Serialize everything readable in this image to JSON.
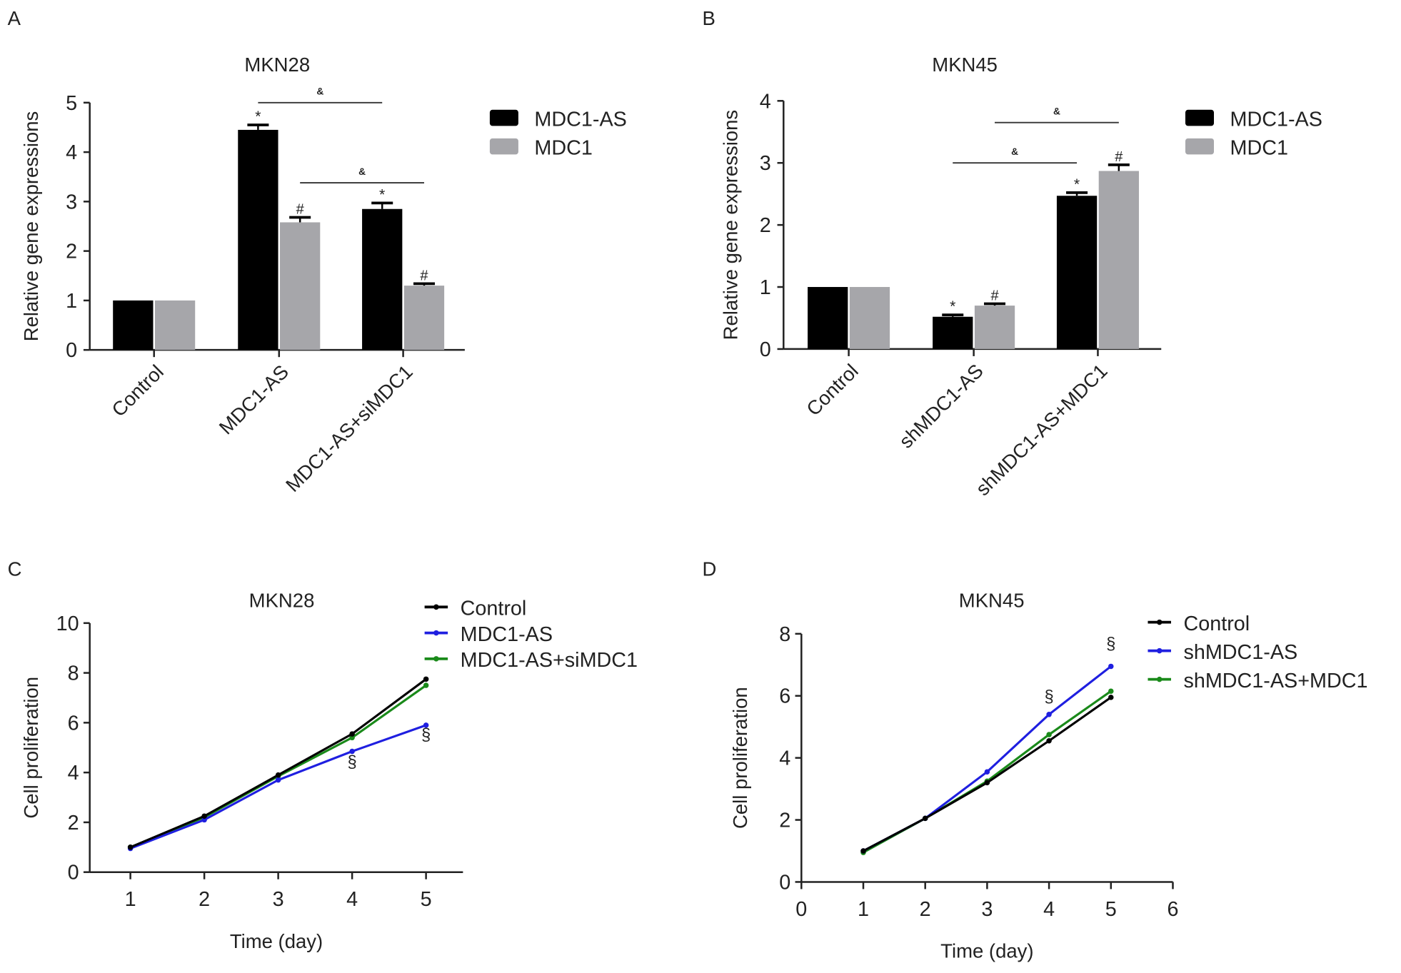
{
  "colors": {
    "black_series": "#000000",
    "gray_series": "#a6a6aa",
    "blue_series": "#1f1fe0",
    "green_series": "#1a8a1a",
    "axis": "#222222"
  },
  "chart_data": [
    {
      "panel": "A",
      "type": "bar",
      "title": "MKN28",
      "xlabel": "",
      "ylabel": "Relative gene expressions",
      "ylim": [
        0,
        5
      ],
      "yticks": [
        "0",
        "1",
        "2",
        "3",
        "4",
        "5"
      ],
      "categories": [
        "Control",
        "MDC1-AS",
        "MDC1-AS+siMDC1"
      ],
      "series": [
        {
          "name": "MDC1-AS",
          "values": [
            1.0,
            4.45,
            2.85
          ],
          "errors": [
            0,
            0.1,
            0.12
          ],
          "marks": [
            "",
            "*",
            "*"
          ]
        },
        {
          "name": "MDC1",
          "values": [
            1.0,
            2.58,
            1.3
          ],
          "errors": [
            0,
            0.1,
            0.04
          ],
          "marks": [
            "",
            "#",
            "#"
          ]
        }
      ],
      "brackets": [
        {
          "from": [
            1,
            0
          ],
          "to": [
            2,
            0
          ],
          "y": 5.0,
          "label": "&"
        },
        {
          "from": [
            1,
            1
          ],
          "to": [
            2,
            1
          ],
          "y": 3.38,
          "label": "&"
        }
      ],
      "legend": "right"
    },
    {
      "panel": "B",
      "type": "bar",
      "title": "MKN45",
      "xlabel": "",
      "ylabel": "Relative gene expressions",
      "ylim": [
        0,
        4
      ],
      "yticks": [
        "0",
        "1",
        "2",
        "3",
        "4"
      ],
      "categories": [
        "Control",
        "shMDC1-AS",
        "shMDC1-AS+MDC1"
      ],
      "series": [
        {
          "name": "MDC1-AS",
          "values": [
            1.0,
            0.52,
            2.47
          ],
          "errors": [
            0,
            0.03,
            0.05
          ],
          "marks": [
            "",
            "*",
            "*"
          ]
        },
        {
          "name": "MDC1",
          "values": [
            1.0,
            0.7,
            2.87
          ],
          "errors": [
            0,
            0.03,
            0.1
          ],
          "marks": [
            "",
            "#",
            "#"
          ]
        }
      ],
      "brackets": [
        {
          "from": [
            1,
            0
          ],
          "to": [
            2,
            0
          ],
          "y": 3.0,
          "label": "&"
        },
        {
          "from": [
            1,
            1
          ],
          "to": [
            2,
            1
          ],
          "y": 3.65,
          "label": "&"
        }
      ],
      "legend": "right"
    },
    {
      "panel": "C",
      "type": "line",
      "title": "MKN28",
      "xlabel": "Time (day)",
      "ylabel": "Cell proliferation",
      "xlim": [
        0.45,
        5.5
      ],
      "ylim": [
        0,
        10
      ],
      "xticks": [
        1,
        2,
        3,
        4,
        5
      ],
      "yticks": [
        0,
        2,
        4,
        6,
        8,
        10
      ],
      "x": [
        1,
        2,
        3,
        4,
        5
      ],
      "series": [
        {
          "name": "Control",
          "values": [
            1.0,
            2.25,
            3.9,
            5.55,
            7.75
          ]
        },
        {
          "name": "MDC1-AS",
          "values": [
            0.95,
            2.1,
            3.7,
            4.85,
            5.9
          ]
        },
        {
          "name": "MDC1-AS+siMDC1",
          "values": [
            1.0,
            2.2,
            3.85,
            5.4,
            7.5
          ]
        }
      ],
      "annotations": [
        {
          "x": 4,
          "y": 4.2,
          "label": "§"
        },
        {
          "x": 5,
          "y": 5.3,
          "label": "§"
        }
      ],
      "legend": "top-right"
    },
    {
      "panel": "D",
      "type": "line",
      "title": "MKN45",
      "xlabel": "Time (day)",
      "ylabel": "Cell proliferation",
      "xlim": [
        0,
        6
      ],
      "ylim": [
        0,
        8
      ],
      "xticks": [
        0,
        1,
        2,
        3,
        4,
        5,
        6
      ],
      "yticks": [
        0,
        2,
        4,
        6,
        8
      ],
      "x": [
        1,
        2,
        3,
        4,
        5
      ],
      "series": [
        {
          "name": "Control",
          "values": [
            1.0,
            2.05,
            3.2,
            4.55,
            5.95
          ]
        },
        {
          "name": "shMDC1-AS",
          "values": [
            1.0,
            2.05,
            3.55,
            5.4,
            6.95
          ]
        },
        {
          "name": "shMDC1-AS+MDC1",
          "values": [
            0.95,
            2.05,
            3.25,
            4.75,
            6.15
          ]
        }
      ],
      "annotations": [
        {
          "x": 4,
          "y": 5.8,
          "label": "§"
        },
        {
          "x": 5,
          "y": 7.5,
          "label": "§"
        }
      ],
      "legend": "top-right"
    }
  ]
}
